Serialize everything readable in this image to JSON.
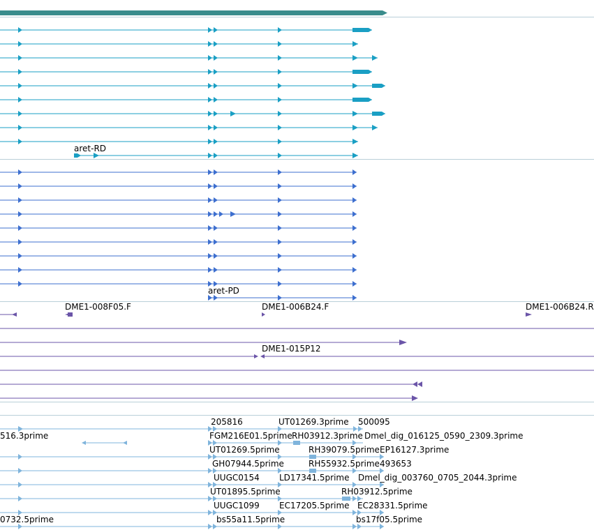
{
  "colors": {
    "gene": "#3a8c8c",
    "mrna": "#1a9fc4",
    "protein": "#3d6fcf",
    "clone": "#6b55a8",
    "est": "#7fb4dc",
    "separator": "#b9cfd8"
  },
  "gene_track": {
    "label": ""
  },
  "mrna_track": {
    "rows": [
      {
        "exons": [
          [
            26,
            32,
            "a"
          ],
          [
            298,
            304,
            "a"
          ],
          [
            306,
            312,
            "a"
          ],
          [
            398,
            404,
            "a"
          ],
          [
            505,
            533,
            "t"
          ]
        ]
      },
      {
        "exons": [
          [
            26,
            32,
            "a"
          ],
          [
            298,
            304,
            "a"
          ],
          [
            306,
            312,
            "a"
          ],
          [
            398,
            404,
            "a"
          ],
          [
            505,
            513,
            "a"
          ]
        ]
      },
      {
        "exons": [
          [
            26,
            32,
            "a"
          ],
          [
            298,
            304,
            "a"
          ],
          [
            306,
            312,
            "a"
          ],
          [
            398,
            404,
            "a"
          ],
          [
            505,
            513,
            "a"
          ],
          [
            533,
            541,
            "a"
          ]
        ]
      },
      {
        "exons": [
          [
            26,
            32,
            "a"
          ],
          [
            298,
            304,
            "a"
          ],
          [
            306,
            312,
            "a"
          ],
          [
            398,
            404,
            "a"
          ],
          [
            505,
            533,
            "t"
          ]
        ]
      },
      {
        "exons": [
          [
            26,
            32,
            "a"
          ],
          [
            298,
            304,
            "a"
          ],
          [
            306,
            312,
            "a"
          ],
          [
            398,
            404,
            "a"
          ],
          [
            505,
            513,
            "a"
          ],
          [
            533,
            552,
            "t"
          ]
        ]
      },
      {
        "exons": [
          [
            26,
            32,
            "a"
          ],
          [
            298,
            304,
            "a"
          ],
          [
            306,
            312,
            "a"
          ],
          [
            398,
            404,
            "a"
          ],
          [
            505,
            533,
            "t"
          ]
        ]
      },
      {
        "exons": [
          [
            26,
            32,
            "a"
          ],
          [
            298,
            304,
            "a"
          ],
          [
            306,
            312,
            "a"
          ],
          [
            330,
            338,
            "a"
          ],
          [
            398,
            404,
            "a"
          ],
          [
            505,
            513,
            "a"
          ],
          [
            533,
            552,
            "t"
          ]
        ]
      },
      {
        "exons": [
          [
            26,
            32,
            "a"
          ],
          [
            298,
            304,
            "a"
          ],
          [
            306,
            312,
            "a"
          ],
          [
            398,
            404,
            "a"
          ],
          [
            505,
            513,
            "a"
          ],
          [
            533,
            541,
            "a"
          ]
        ]
      },
      {
        "exons": [
          [
            26,
            32,
            "a"
          ],
          [
            298,
            304,
            "a"
          ],
          [
            306,
            312,
            "a"
          ],
          [
            398,
            404,
            "a"
          ],
          [
            505,
            513,
            "a"
          ]
        ]
      },
      {
        "start": 106,
        "label": "aret-RD",
        "exons": [
          [
            106,
            116,
            "t"
          ],
          [
            134,
            142,
            "a"
          ],
          [
            298,
            304,
            "a"
          ],
          [
            306,
            312,
            "a"
          ],
          [
            398,
            404,
            "a"
          ],
          [
            505,
            513,
            "a"
          ]
        ]
      }
    ]
  },
  "protein_track": {
    "rows": [
      {
        "exons": [
          [
            26,
            32,
            "a"
          ],
          [
            298,
            304,
            "a"
          ],
          [
            306,
            312,
            "a"
          ],
          [
            398,
            404,
            "a"
          ],
          [
            505,
            511,
            "a"
          ]
        ]
      },
      {
        "exons": [
          [
            26,
            32,
            "a"
          ],
          [
            298,
            304,
            "a"
          ],
          [
            306,
            312,
            "a"
          ],
          [
            398,
            404,
            "a"
          ],
          [
            505,
            511,
            "a"
          ]
        ]
      },
      {
        "exons": [
          [
            26,
            32,
            "a"
          ],
          [
            298,
            304,
            "a"
          ],
          [
            306,
            312,
            "a"
          ],
          [
            398,
            404,
            "a"
          ],
          [
            505,
            511,
            "a"
          ]
        ]
      },
      {
        "exons": [
          [
            26,
            32,
            "a"
          ],
          [
            298,
            304,
            "a"
          ],
          [
            306,
            312,
            "a"
          ],
          [
            314,
            320,
            "a"
          ],
          [
            330,
            338,
            "a"
          ],
          [
            398,
            404,
            "a"
          ],
          [
            505,
            511,
            "a"
          ]
        ]
      },
      {
        "exons": [
          [
            26,
            32,
            "a"
          ],
          [
            298,
            304,
            "a"
          ],
          [
            306,
            312,
            "a"
          ],
          [
            398,
            404,
            "a"
          ],
          [
            505,
            511,
            "a"
          ]
        ]
      },
      {
        "exons": [
          [
            26,
            32,
            "a"
          ],
          [
            298,
            304,
            "a"
          ],
          [
            306,
            312,
            "a"
          ],
          [
            398,
            404,
            "a"
          ],
          [
            505,
            511,
            "a"
          ]
        ]
      },
      {
        "exons": [
          [
            26,
            32,
            "a"
          ],
          [
            298,
            304,
            "a"
          ],
          [
            306,
            312,
            "a"
          ],
          [
            398,
            404,
            "a"
          ],
          [
            505,
            511,
            "a"
          ]
        ]
      },
      {
        "exons": [
          [
            26,
            32,
            "a"
          ],
          [
            298,
            304,
            "a"
          ],
          [
            306,
            312,
            "a"
          ],
          [
            398,
            404,
            "a"
          ],
          [
            505,
            511,
            "a"
          ]
        ]
      },
      {
        "exons": [
          [
            26,
            32,
            "a"
          ],
          [
            298,
            304,
            "a"
          ],
          [
            306,
            312,
            "a"
          ],
          [
            398,
            404,
            "a"
          ],
          [
            505,
            511,
            "a"
          ]
        ]
      },
      {
        "start": 298,
        "label": "aret-PD",
        "exons": [
          [
            298,
            304,
            "a"
          ],
          [
            306,
            312,
            "a"
          ],
          [
            398,
            404,
            "a"
          ],
          [
            505,
            511,
            "a"
          ]
        ]
      }
    ]
  },
  "clone_track": {
    "labels": [
      "DME1-008F05.F",
      "DME1-006B24.F",
      "DME1-006B24.R",
      "DME1-015P12"
    ]
  },
  "est_track": {
    "labels": [
      "205816",
      "UT01269.3prime",
      "500095",
      "516.3prime",
      "FGM216E01.5prime",
      "RH03912.3prime",
      "Dmel_dig_016125_0590_2309.3prime",
      "UT01269.5prime",
      "RH39079.5prime",
      "EP16127.3prime",
      "GH07944.5prime",
      "RH55932.5prime",
      "493653",
      "UUGC0154",
      "LD17341.5prime",
      "Dmel_dig_003760_0705_2044.3prime",
      "UT01895.5prime",
      "RH03912.5prime",
      "UUGC1099",
      "EC17205.5prime",
      "EC28331.5prime",
      "0732.5prime",
      "bs55a11.5prime",
      "bs17f05.5prime"
    ]
  }
}
